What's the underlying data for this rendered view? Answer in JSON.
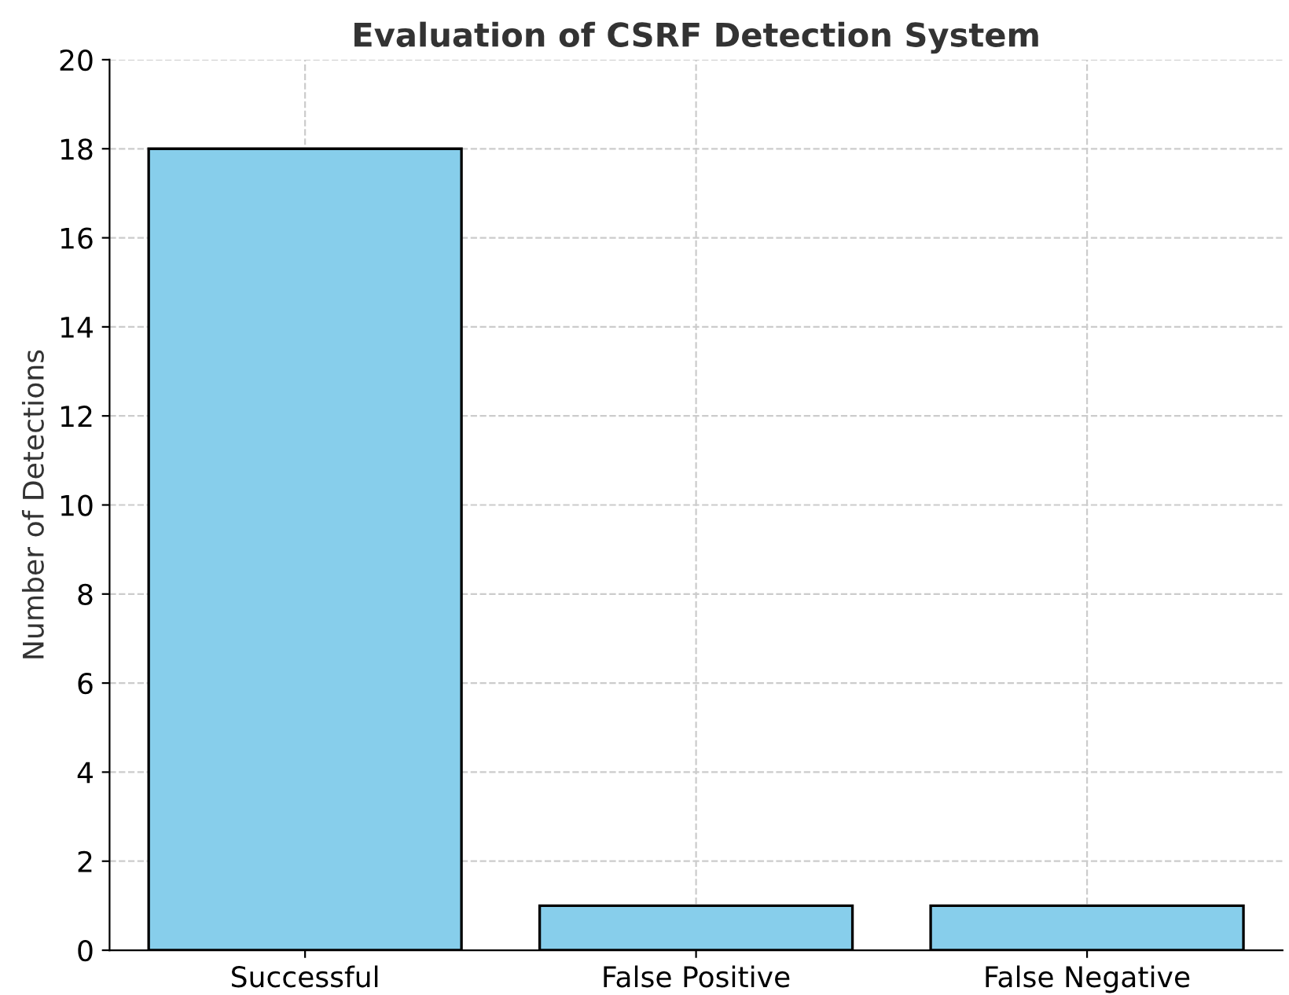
{
  "chart_data": {
    "type": "bar",
    "title": "Evaluation of CSRF Detection System",
    "ylabel": "Number of Detections",
    "categories": [
      "Successful",
      "False Positive",
      "False Negative"
    ],
    "values": [
      18,
      1,
      1
    ],
    "color": "#87ceeb",
    "ylim": [
      0,
      20
    ],
    "yticks": [
      0,
      2,
      4,
      6,
      8,
      10,
      12,
      14,
      16,
      18,
      20
    ],
    "grid": true
  }
}
